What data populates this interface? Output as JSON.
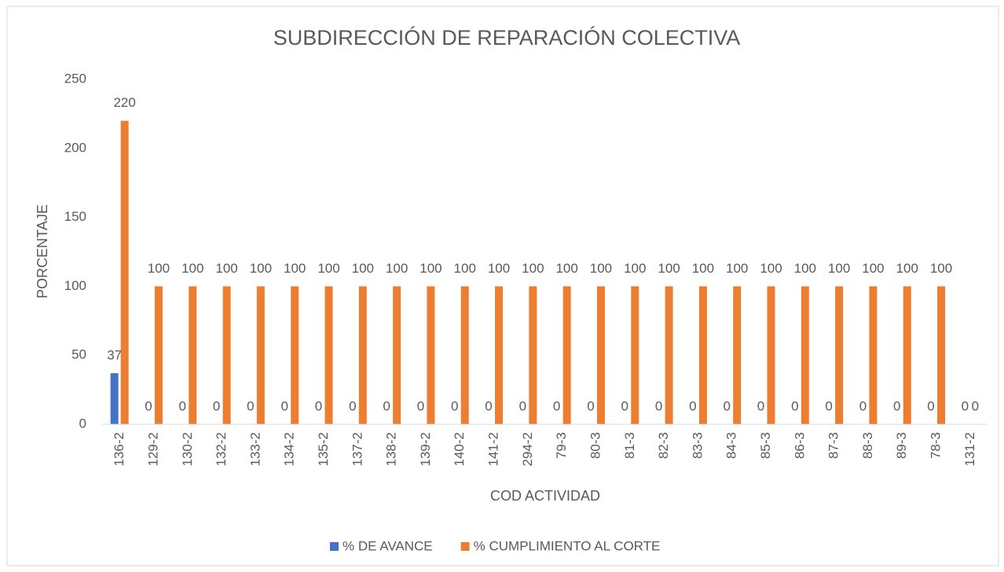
{
  "chart_data": {
    "type": "bar",
    "title": "SUBDIRECCIÓN DE REPARACIÓN COLECTIVA",
    "x_label": "COD ACTIVIDAD",
    "y_label": "PORCENTAJE",
    "categories": [
      "136-2",
      "129-2",
      "130-2",
      "132-2",
      "133-2",
      "134-2",
      "135-2",
      "137-2",
      "138-2",
      "139-2",
      "140-2",
      "141-2",
      "294-2",
      "79-3",
      "80-3",
      "81-3",
      "82-3",
      "83-3",
      "84-3",
      "85-3",
      "86-3",
      "87-3",
      "88-3",
      "89-3",
      "78-3",
      "131-2"
    ],
    "series": [
      {
        "name": "% DE AVANCE",
        "color": "#4472c4",
        "values": [
          37,
          0,
          0,
          0,
          0,
          0,
          0,
          0,
          0,
          0,
          0,
          0,
          0,
          0,
          0,
          0,
          0,
          0,
          0,
          0,
          0,
          0,
          0,
          0,
          0,
          0
        ]
      },
      {
        "name": "% CUMPLIMIENTO AL CORTE",
        "color": "#ed7d31",
        "values": [
          220,
          100,
          100,
          100,
          100,
          100,
          100,
          100,
          100,
          100,
          100,
          100,
          100,
          100,
          100,
          100,
          100,
          100,
          100,
          100,
          100,
          100,
          100,
          100,
          100,
          0
        ]
      }
    ],
    "ylim": [
      0,
      250
    ],
    "yticks": [
      0,
      50,
      100,
      150,
      200,
      250
    ],
    "grid": false,
    "legend": "bottom"
  }
}
